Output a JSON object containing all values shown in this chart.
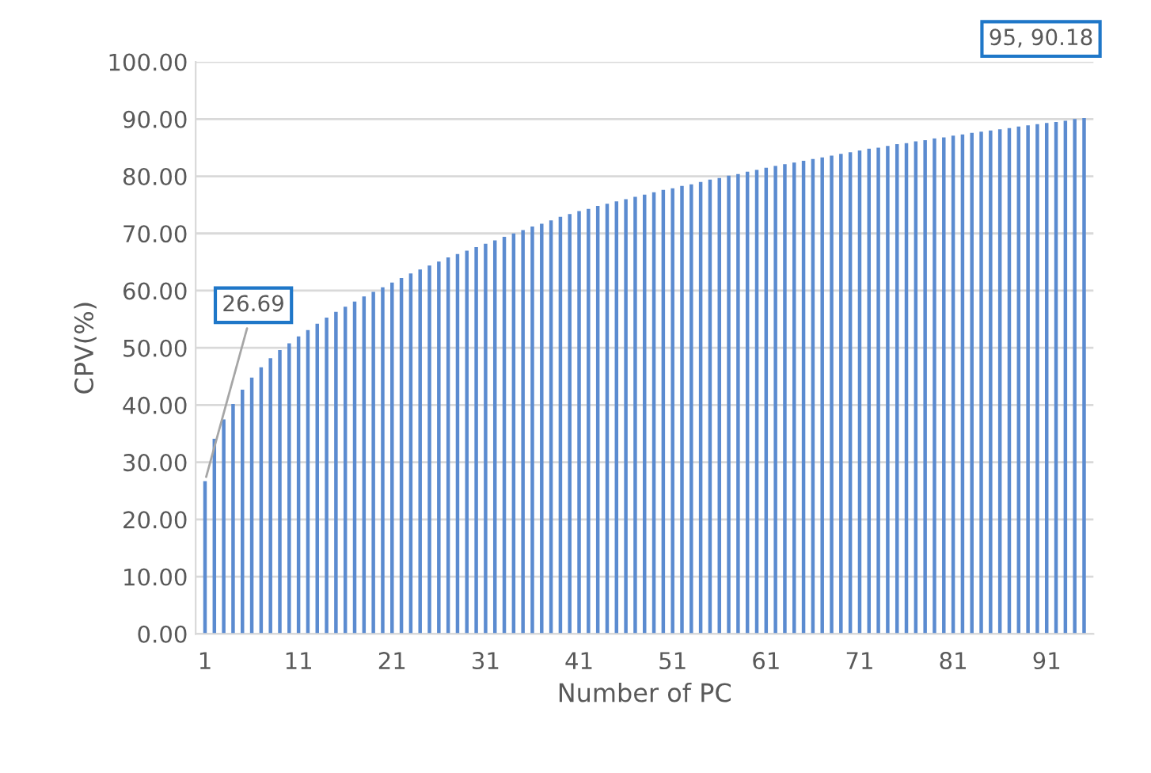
{
  "chart_data": {
    "type": "bar",
    "xlabel": "Number of PC",
    "ylabel": "CPV(%)",
    "categories": [
      "1",
      null,
      null,
      null,
      null,
      null,
      null,
      null,
      null,
      null,
      "11",
      null,
      null,
      null,
      null,
      null,
      null,
      null,
      null,
      null,
      "21",
      null,
      null,
      null,
      null,
      null,
      null,
      null,
      null,
      null,
      "31",
      null,
      null,
      null,
      null,
      null,
      null,
      null,
      null,
      null,
      "41",
      null,
      null,
      null,
      null,
      null,
      null,
      null,
      null,
      null,
      "51",
      null,
      null,
      null,
      null,
      null,
      null,
      null,
      null,
      null,
      "61",
      null,
      null,
      null,
      null,
      null,
      null,
      null,
      null,
      null,
      "71",
      null,
      null,
      null,
      null,
      null,
      null,
      null,
      null,
      null,
      "81",
      null,
      null,
      null,
      null,
      null,
      null,
      null,
      null,
      null,
      "91",
      null,
      null,
      null,
      null
    ],
    "series": [
      {
        "color": "#5b8bd0",
        "values": [
          26.69,
          34.1,
          37.5,
          40.2,
          42.7,
          44.8,
          46.6,
          48.2,
          49.6,
          50.8,
          52.0,
          53.1,
          54.2,
          55.3,
          56.3,
          57.2,
          58.1,
          59.0,
          59.8,
          60.6,
          61.4,
          62.2,
          63.0,
          63.7,
          64.4,
          65.1,
          65.8,
          66.4,
          67.0,
          67.6,
          68.2,
          68.8,
          69.4,
          70.0,
          70.6,
          71.2,
          71.7,
          72.3,
          72.9,
          73.4,
          73.9,
          74.3,
          74.8,
          75.2,
          75.6,
          76.0,
          76.4,
          76.8,
          77.2,
          77.6,
          77.9,
          78.3,
          78.6,
          79.0,
          79.4,
          79.7,
          80.1,
          80.4,
          80.8,
          81.1,
          81.5,
          81.8,
          82.1,
          82.4,
          82.7,
          83.0,
          83.3,
          83.6,
          83.9,
          84.2,
          84.5,
          84.8,
          85.0,
          85.3,
          85.6,
          85.8,
          86.1,
          86.3,
          86.6,
          86.8,
          87.1,
          87.3,
          87.6,
          87.8,
          88.0,
          88.2,
          88.4,
          88.7,
          88.9,
          89.1,
          89.3,
          89.5,
          89.7,
          90.0,
          90.18
        ]
      }
    ],
    "ylim": [
      0,
      100
    ],
    "yticks": [
      {
        "value": 0,
        "label": "0.00"
      },
      {
        "value": 10,
        "label": "10.00"
      },
      {
        "value": 20,
        "label": "20.00"
      },
      {
        "value": 30,
        "label": "30.00"
      },
      {
        "value": 40,
        "label": "40.00"
      },
      {
        "value": 50,
        "label": "50.00"
      },
      {
        "value": 60,
        "label": "60.00"
      },
      {
        "value": 70,
        "label": "70.00"
      },
      {
        "value": 80,
        "label": "80.00"
      },
      {
        "value": 90,
        "label": "90.00"
      },
      {
        "value": 100,
        "label": "100.00"
      }
    ],
    "grid": "y",
    "annotations": [
      {
        "text": "26.69",
        "x": "1",
        "y": 26.69
      },
      "95, 90.18"
    ]
  }
}
